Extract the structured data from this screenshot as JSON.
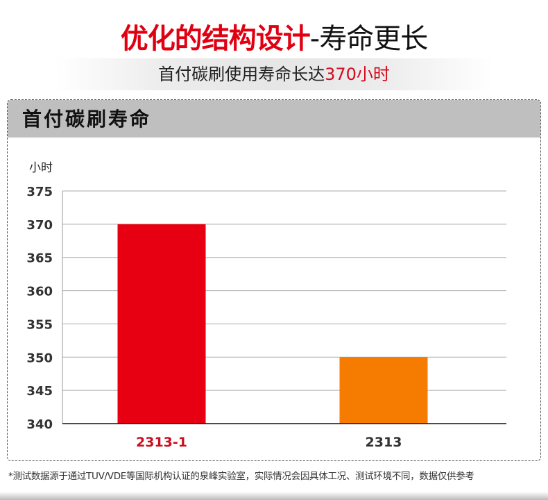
{
  "header": {
    "title_red": "优化的结构设计",
    "title_black": "-寿命更长",
    "subtitle_prefix": "首付碳刷使用寿命长达",
    "subtitle_highlight": "370小时"
  },
  "panel": {
    "title": "首付碳刷寿命"
  },
  "footnote": "*测试数据源于通过TUV/VDE等国际机构认证的泉峰实验室，实际情况会因具体工况、测试环境不同，数据仅供参考",
  "chart_data": {
    "type": "bar",
    "title": "首付碳刷寿命",
    "ylabel": "小时",
    "xlabel": "",
    "categories": [
      "2313-1",
      "2313"
    ],
    "values": [
      370,
      350
    ],
    "ylim": [
      340,
      375
    ],
    "yticks": [
      340,
      345,
      350,
      355,
      360,
      365,
      370,
      375
    ],
    "grid": true,
    "bar_colors": [
      "#e60012",
      "#f57c00"
    ],
    "label_colors": [
      "#c8101e",
      "#333333"
    ]
  }
}
